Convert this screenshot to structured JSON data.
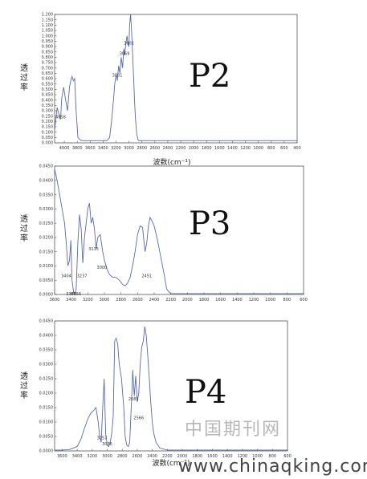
{
  "chart_data": [
    {
      "type": "line",
      "id": "P2",
      "panel_label": "P2",
      "ylabel": "透过率",
      "xlabel": "波数(cm⁻¹)",
      "xlim": [
        4150,
        400
      ],
      "ylim": [
        0.0,
        1.2
      ],
      "xticks": [
        "4000",
        "3800",
        "3600",
        "3400",
        "3200",
        "3000",
        "2800",
        "2600",
        "2400",
        "2200",
        "2000",
        "1800",
        "1600",
        "1400",
        "1200",
        "1000",
        "800",
        "600",
        "400"
      ],
      "xtick_values": [
        4000,
        3800,
        3600,
        3400,
        3200,
        3000,
        2800,
        2600,
        2400,
        2200,
        2000,
        1800,
        1600,
        1400,
        1200,
        1000,
        800,
        600,
        400
      ],
      "yticks": [
        "0.000",
        "0.050",
        "0.100",
        "0.150",
        "0.200",
        "0.250",
        "0.300",
        "0.350",
        "0.400",
        "0.450",
        "0.500",
        "0.550",
        "0.600",
        "0.650",
        "0.700",
        "0.750",
        "0.800",
        "0.850",
        "0.900",
        "0.950",
        "1.000",
        "1.050",
        "1.100",
        "1.150",
        "1.200"
      ],
      "ytick_values": [
        0.0,
        0.05,
        0.1,
        0.15,
        0.2,
        0.25,
        0.3,
        0.35,
        0.4,
        0.45,
        0.5,
        0.55,
        0.6,
        0.65,
        0.7,
        0.75,
        0.8,
        0.85,
        0.9,
        0.95,
        1.0,
        1.05,
        1.1,
        1.15,
        1.2
      ],
      "annotations": [
        {
          "text": "4058",
          "x": 4058,
          "y": 0.23
        },
        {
          "text": "3181",
          "x": 3181,
          "y": 0.62
        },
        {
          "text": "3069",
          "x": 3069,
          "y": 0.82
        },
        {
          "text": "3001",
          "x": 3001,
          "y": 0.92
        }
      ],
      "x": [
        4150,
        4110,
        4080,
        4058,
        4040,
        4010,
        3980,
        3950,
        3920,
        3900,
        3880,
        3860,
        3840,
        3820,
        3790,
        3760,
        3730,
        3700,
        3660,
        3620,
        3580,
        3560,
        3540,
        3500,
        3460,
        3420,
        3380,
        3340,
        3300,
        3270,
        3240,
        3220,
        3200,
        3181,
        3160,
        3140,
        3120,
        3100,
        3080,
        3069,
        3050,
        3030,
        3015,
        3001,
        2990,
        2975,
        2960,
        2945,
        2930,
        2915,
        2900,
        2880,
        2860,
        2850,
        2800,
        2600,
        2400,
        2200,
        2000,
        1800,
        1600,
        1400,
        1200,
        1000,
        800,
        600,
        400
      ],
      "y": [
        0.12,
        0.33,
        0.26,
        0.22,
        0.42,
        0.52,
        0.4,
        0.3,
        0.52,
        0.58,
        0.62,
        0.58,
        0.6,
        0.32,
        0.05,
        0.03,
        0.02,
        0.02,
        0.02,
        0.02,
        0.02,
        0.02,
        0.02,
        0.02,
        0.02,
        0.02,
        0.02,
        0.02,
        0.05,
        0.2,
        0.4,
        0.55,
        0.65,
        0.58,
        0.72,
        0.65,
        0.8,
        0.7,
        0.88,
        0.82,
        0.92,
        1.0,
        0.92,
        0.9,
        1.1,
        1.2,
        1.05,
        0.85,
        0.62,
        0.4,
        0.22,
        0.08,
        0.03,
        0.02,
        0.02,
        0.02,
        0.02,
        0.02,
        0.02,
        0.02,
        0.02,
        0.02,
        0.02,
        0.02,
        0.02,
        0.02,
        0.02
      ]
    },
    {
      "type": "line",
      "id": "P3",
      "panel_label": "P3",
      "ylabel": "透过率",
      "xlabel": "",
      "xlim": [
        3600,
        600
      ],
      "ylim": [
        0.0,
        0.045
      ],
      "xticks": [
        "3600",
        "3400",
        "3200",
        "3000",
        "2800",
        "2600",
        "2400",
        "2200",
        "2000",
        "1800",
        "1600",
        "1400",
        "1200",
        "1000",
        "800",
        "600"
      ],
      "xtick_values": [
        3600,
        3400,
        3200,
        3000,
        2800,
        2600,
        2400,
        2200,
        2000,
        1800,
        1600,
        1400,
        1200,
        1000,
        800,
        600
      ],
      "yticks": [
        "0.0000",
        "0.0050",
        "0.0100",
        "0.0150",
        "0.0200",
        "0.0250",
        "0.0300",
        "0.0350",
        "0.0400",
        "0.0450"
      ],
      "ytick_values": [
        0.0,
        0.005,
        0.01,
        0.015,
        0.02,
        0.025,
        0.03,
        0.035,
        0.04,
        0.045
      ],
      "annotations": [
        {
          "text": "3404",
          "x": 3460,
          "y": 0.006
        },
        {
          "text": "3388",
          "x": 3400,
          "y": -0.0003
        },
        {
          "text": "3356",
          "x": 3340,
          "y": -0.0003
        },
        {
          "text": "3237",
          "x": 3270,
          "y": 0.006
        },
        {
          "text": "3115",
          "x": 3130,
          "y": 0.0155
        },
        {
          "text": "3000",
          "x": 3030,
          "y": 0.009
        },
        {
          "text": "2451",
          "x": 2490,
          "y": 0.006
        }
      ],
      "x": [
        3600,
        3570,
        3540,
        3510,
        3480,
        3460,
        3440,
        3420,
        3405,
        3390,
        3370,
        3356,
        3340,
        3320,
        3300,
        3280,
        3260,
        3240,
        3220,
        3200,
        3180,
        3160,
        3140,
        3120,
        3100,
        3080,
        3050,
        3020,
        3000,
        2970,
        2940,
        2900,
        2860,
        2820,
        2780,
        2750,
        2720,
        2690,
        2660,
        2630,
        2600,
        2570,
        2540,
        2510,
        2490,
        2470,
        2450,
        2430,
        2400,
        2360,
        2320,
        2280,
        2250,
        2220,
        2200,
        2000,
        1800,
        1600,
        1400,
        1200,
        1000,
        800,
        600
      ],
      "y": [
        0.044,
        0.04,
        0.035,
        0.03,
        0.025,
        0.018,
        0.01,
        0.012,
        0.019,
        0.005,
        0.0005,
        0.0003,
        0.002,
        0.018,
        0.028,
        0.023,
        0.011,
        0.02,
        0.025,
        0.03,
        0.032,
        0.025,
        0.027,
        0.023,
        0.016,
        0.02,
        0.021,
        0.015,
        0.012,
        0.009,
        0.007,
        0.006,
        0.006,
        0.005,
        0.0035,
        0.003,
        0.004,
        0.006,
        0.01,
        0.015,
        0.021,
        0.024,
        0.0235,
        0.015,
        0.018,
        0.024,
        0.027,
        0.026,
        0.024,
        0.019,
        0.013,
        0.007,
        0.002,
        0.0008,
        0.0003,
        0.0003,
        0.0003,
        0.0003,
        0.0003,
        0.0003,
        0.0003,
        0.0003,
        0.0003
      ]
    },
    {
      "type": "line",
      "id": "P4",
      "panel_label": "P4",
      "ylabel": "透过率",
      "xlabel": "波数(cm⁻¹)",
      "xlim": [
        3700,
        600
      ],
      "ylim": [
        0.0,
        0.045
      ],
      "xticks": [
        "3600",
        "3400",
        "3200",
        "3000",
        "2800",
        "2600",
        "2400",
        "2200",
        "2000",
        "1800",
        "1600",
        "1400",
        "1200",
        "1000",
        "800",
        "600"
      ],
      "xtick_values": [
        3600,
        3400,
        3200,
        3000,
        2800,
        2600,
        2400,
        2200,
        2000,
        1800,
        1600,
        1400,
        1200,
        1000,
        800,
        600
      ],
      "yticks": [
        "0.0000",
        "0.0050",
        "0.0100",
        "0.0150",
        "0.0200",
        "0.0250",
        "0.0300",
        "0.0350",
        "0.0400",
        "0.0450"
      ],
      "ytick_values": [
        0.0,
        0.005,
        0.01,
        0.015,
        0.02,
        0.025,
        0.03,
        0.035,
        0.04,
        0.045
      ],
      "annotations": [
        {
          "text": "3057",
          "x": 3070,
          "y": 0.004
        },
        {
          "text": "3036",
          "x": 3000,
          "y": 0.002
        },
        {
          "text": "2681",
          "x": 2650,
          "y": 0.0175
        },
        {
          "text": "2566",
          "x": 2580,
          "y": 0.011
        }
      ],
      "x": [
        3700,
        3600,
        3500,
        3400,
        3350,
        3300,
        3260,
        3220,
        3180,
        3150,
        3120,
        3100,
        3080,
        3060,
        3040,
        3020,
        3000,
        2980,
        2960,
        2940,
        2920,
        2900,
        2880,
        2860,
        2840,
        2810,
        2780,
        2760,
        2740,
        2720,
        2700,
        2680,
        2660,
        2640,
        2620,
        2600,
        2580,
        2560,
        2540,
        2520,
        2500,
        2480,
        2460,
        2440,
        2420,
        2400,
        2380,
        2350,
        2300,
        2200,
        2000,
        1800,
        1600,
        1400,
        1200,
        1000,
        800,
        600
      ],
      "y": [
        0.0003,
        0.0003,
        0.0005,
        0.0015,
        0.004,
        0.008,
        0.011,
        0.013,
        0.014,
        0.015,
        0.01,
        0.005,
        0.003,
        0.015,
        0.025,
        0.006,
        0.002,
        0.0015,
        0.003,
        0.006,
        0.012,
        0.038,
        0.039,
        0.037,
        0.03,
        0.025,
        0.015,
        0.005,
        0.002,
        0.0015,
        0.003,
        0.015,
        0.028,
        0.019,
        0.026,
        0.017,
        0.02,
        0.03,
        0.036,
        0.038,
        0.043,
        0.04,
        0.033,
        0.025,
        0.017,
        0.01,
        0.006,
        0.003,
        0.001,
        0.0003,
        0.0003,
        0.0003,
        0.0003,
        0.0003,
        0.0003,
        0.0003,
        0.0003,
        0.0003
      ]
    }
  ],
  "watermark": {
    "cn_text": "中国期刊网",
    "url_text": "www.chinaqking.com"
  }
}
